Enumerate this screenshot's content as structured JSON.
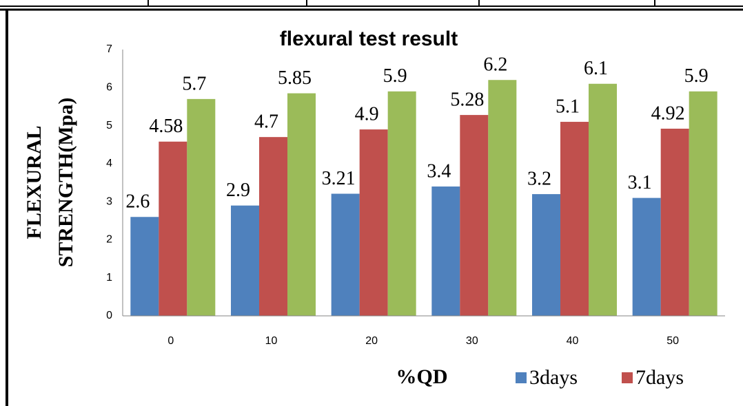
{
  "chart_data": {
    "type": "bar",
    "title": "flexural test result",
    "x_label": "%QD",
    "y_label": [
      "FLEXURAL",
      "STRENGTH(Mpa)"
    ],
    "categories": [
      "0",
      "10",
      "20",
      "30",
      "40",
      "50"
    ],
    "series": [
      {
        "name": "3days",
        "color": "#4f81bd",
        "values": [
          2.6,
          2.9,
          3.21,
          3.4,
          3.2,
          3.1
        ]
      },
      {
        "name": "7days",
        "color": "#c0504d",
        "values": [
          4.58,
          4.7,
          4.9,
          5.28,
          5.1,
          4.92
        ]
      },
      {
        "color": "#9bbb59",
        "values": [
          5.7,
          5.85,
          5.9,
          6.2,
          6.1,
          5.9
        ]
      }
    ],
    "ylim": [
      0,
      7
    ],
    "yticks": [
      0,
      1,
      2,
      3,
      4,
      5,
      6,
      7
    ],
    "grid": false,
    "legend": "bottom-right"
  }
}
